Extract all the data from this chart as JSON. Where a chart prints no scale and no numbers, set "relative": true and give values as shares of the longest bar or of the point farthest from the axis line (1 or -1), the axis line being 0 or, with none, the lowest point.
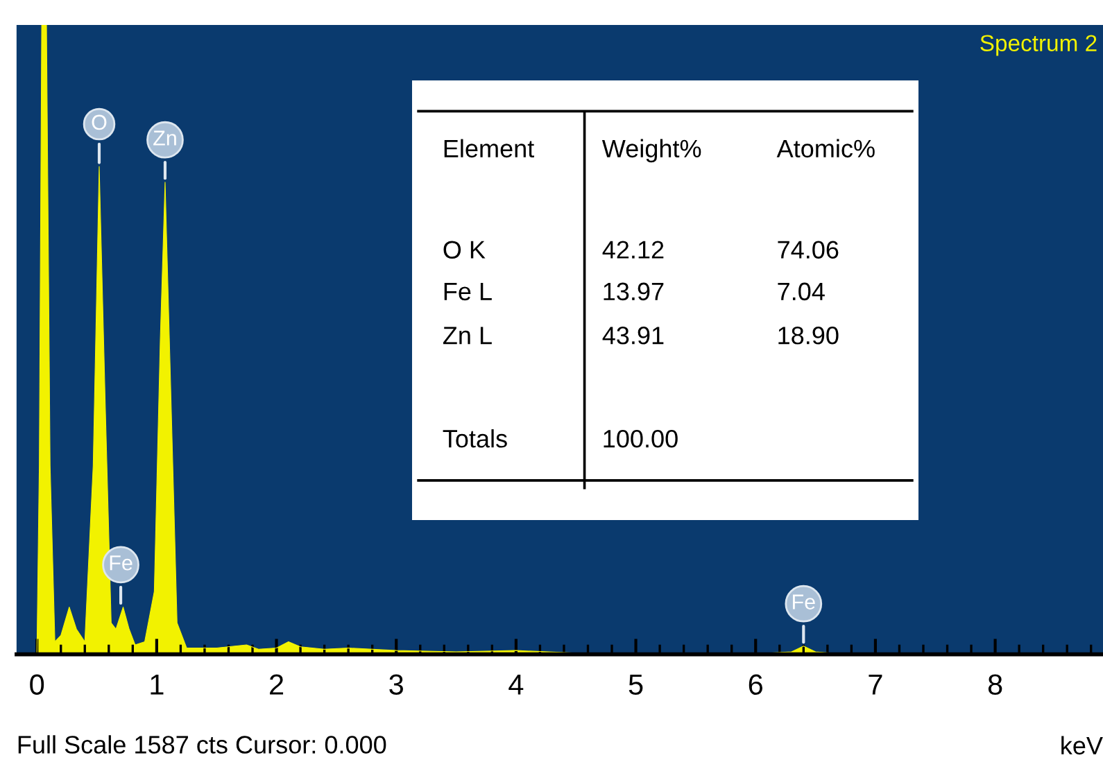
{
  "chart_data": {
    "type": "area",
    "title": "Spectrum 2",
    "xlabel": "keV",
    "relative": true,
    "x": [
      0.0,
      0.02,
      0.04,
      0.08,
      0.11,
      0.15,
      0.2,
      0.27,
      0.33,
      0.4,
      0.47,
      0.52,
      0.57,
      0.62,
      0.66,
      0.72,
      0.77,
      0.82,
      0.9,
      0.98,
      1.03,
      1.07,
      1.12,
      1.17,
      1.25,
      1.5,
      1.75,
      1.85,
      2.0,
      2.1,
      2.2,
      2.4,
      2.6,
      3.0,
      3.5,
      4.0,
      4.5,
      5.0,
      6.0,
      6.3,
      6.4,
      6.5,
      6.7,
      8.9
    ],
    "series": [
      {
        "color": "#f2f200",
        "values": [
          0,
          0.3,
          1.0,
          1.0,
          0.3,
          0.02,
          0.03,
          0.075,
          0.04,
          0.02,
          0.3,
          0.775,
          0.4,
          0.05,
          0.04,
          0.075,
          0.04,
          0.015,
          0.02,
          0.1,
          0.5,
          0.75,
          0.4,
          0.05,
          0.01,
          0.01,
          0.015,
          0.008,
          0.01,
          0.02,
          0.012,
          0.008,
          0.01,
          0.006,
          0.004,
          0.006,
          0.002,
          0.002,
          0.001,
          0.004,
          0.013,
          0.004,
          0.001,
          0
        ]
      }
    ],
    "xlim": [
      -0.17,
      8.9
    ],
    "xticks": [
      0,
      1,
      2,
      3,
      4,
      5,
      6,
      7,
      8
    ],
    "grid": false,
    "tick_labels": "x",
    "annotations": [
      {
        "text": "O",
        "x": 0.52,
        "y": 0.775
      },
      {
        "text": "Zn",
        "x": 1.07,
        "y": 0.75
      },
      {
        "text": "Fe",
        "x": 0.7,
        "y": 0.075
      },
      {
        "text": "Fe",
        "x": 6.4,
        "y": 0.013
      },
      "Element",
      "Weight%",
      "Atomic%",
      "O K",
      "42.12",
      "74.06",
      "Fe L",
      "13.97",
      "7.04",
      "Zn L",
      "43.91",
      "18.90",
      "Totals",
      "100.00",
      "Full Scale 1587 cts Cursor: 0.000"
    ]
  }
}
